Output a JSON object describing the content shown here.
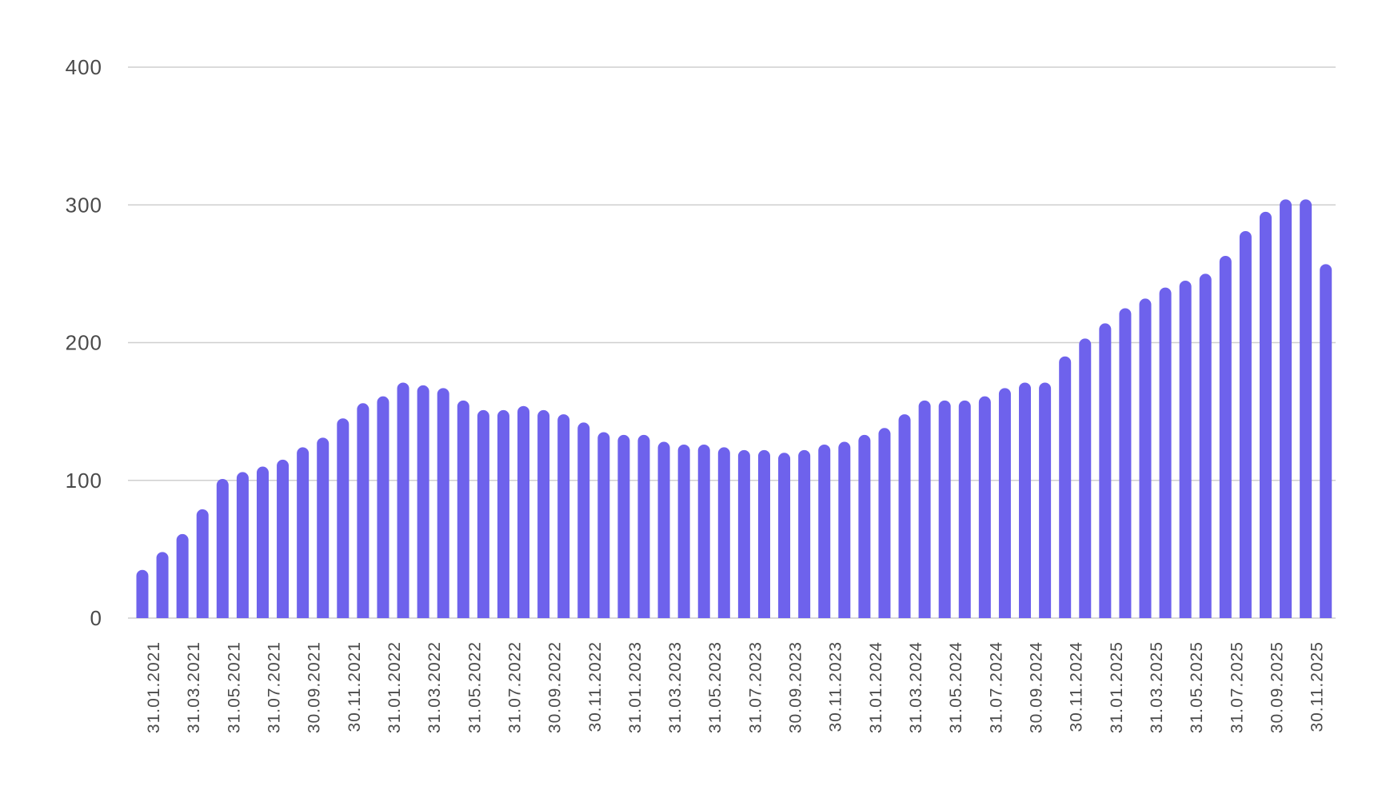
{
  "chart_data": {
    "type": "bar",
    "title": "",
    "xlabel": "",
    "ylabel": "",
    "ylim": [
      0,
      400
    ],
    "yticks": [
      0,
      100,
      200,
      300,
      400
    ],
    "grid": true,
    "bar_color": "#6E62EC",
    "x_tick_labels": [
      "31.01.2021",
      "31.03.2021",
      "31.05.2021",
      "31.07.2021",
      "30.09.2021",
      "30.11.2021",
      "31.01.2022",
      "31.03.2022",
      "31.05.2022",
      "31.07.2022",
      "30.09.2022",
      "30.11.2022",
      "31.01.2023",
      "31.03.2023",
      "31.05.2023",
      "31.07.2023",
      "30.09.2023",
      "30.11.2023",
      "31.01.2024",
      "31.03.2024",
      "31.05.2024",
      "31.07.2024",
      "30.09.2024",
      "30.11.2024",
      "31.01.2025",
      "31.03.2025",
      "31.05.2025",
      "31.07.2025",
      "30.09.2025",
      "30.11.2025"
    ],
    "values": [
      35,
      48,
      61,
      79,
      101,
      106,
      110,
      115,
      124,
      131,
      145,
      156,
      161,
      171,
      169,
      167,
      158,
      151,
      151,
      154,
      151,
      148,
      142,
      135,
      133,
      133,
      128,
      126,
      126,
      124,
      122,
      122,
      120,
      122,
      126,
      128,
      133,
      138,
      148,
      158,
      158,
      158,
      161,
      167,
      171,
      171,
      190,
      203,
      214,
      225,
      232,
      240,
      245,
      250,
      263,
      281,
      295,
      304,
      304,
      257
    ]
  }
}
